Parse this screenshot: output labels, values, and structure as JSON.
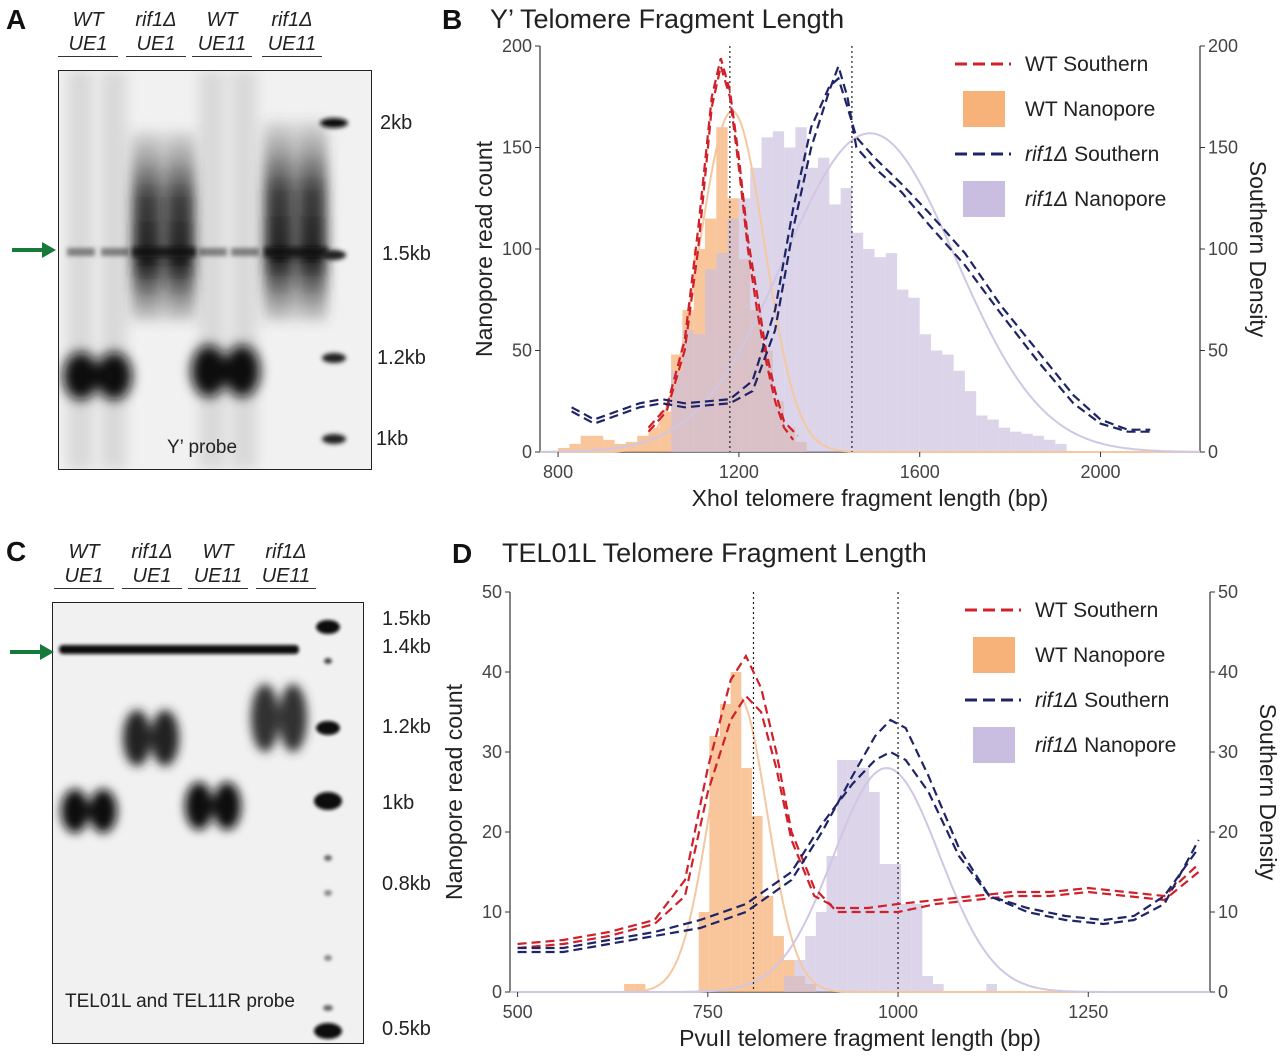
{
  "panels": {
    "A": {
      "letter": "A",
      "lanes": [
        {
          "top": "WT",
          "bottom": "UE1"
        },
        {
          "top": "rif1Δ",
          "bottom": "UE1"
        },
        {
          "top": "WT",
          "bottom": "UE11"
        },
        {
          "top": "rif1Δ",
          "bottom": "UE11"
        }
      ],
      "markers": [
        "2kb",
        "1.5kb",
        "1.2kb",
        "1kb"
      ],
      "caption": "Y’ probe"
    },
    "B": {
      "letter": "B",
      "title": "Y’ Telomere Fragment Length",
      "xlabel": "XhoI telomere fragment length (bp)",
      "ylabel_left": "Nanopore read count",
      "ylabel_right": "Southern Density"
    },
    "C": {
      "letter": "C",
      "lanes": [
        {
          "top": "WT",
          "bottom": "UE1"
        },
        {
          "top": "rif1Δ",
          "bottom": "UE1"
        },
        {
          "top": "WT",
          "bottom": "UE11"
        },
        {
          "top": "rif1Δ",
          "bottom": "UE11"
        }
      ],
      "markers": [
        "1.5kb",
        "1.4kb",
        "1.2kb",
        "1kb",
        "0.8kb",
        "0.5kb"
      ],
      "caption": "TEL01L and TEL11R probe"
    },
    "D": {
      "letter": "D",
      "title": "TEL01L Telomere Fragment Length",
      "xlabel": "PvuII telomere fragment length (bp)",
      "ylabel_left": "Nanopore read count",
      "ylabel_right": "Southern Density"
    }
  },
  "colors": {
    "wt_southern": "#d0202a",
    "wt_nanopore": "#f7b27a",
    "rif1_southern": "#1f2466",
    "rif1_nanopore": "#c9bedf",
    "arrow": "#167a3a"
  },
  "chart_data": [
    {
      "type": "histogram+line",
      "title": "Y’ Telomere Fragment Length",
      "xlabel": "XhoI telomere fragment length (bp)",
      "ylabel": "Nanopore read count",
      "ylabel_right": "Southern Density",
      "xlim": [
        760,
        2220
      ],
      "ylim": [
        0,
        200
      ],
      "xticks": [
        800,
        1200,
        1600,
        2000
      ],
      "yticks": [
        0,
        50,
        100,
        150,
        200
      ],
      "yticks_right": [
        0,
        50,
        100,
        150,
        200
      ],
      "legend_position": "top-right",
      "legend": [
        "WT Southern",
        "WT Nanopore",
        "rif1Δ Southern",
        "rif1Δ Nanopore"
      ],
      "vlines": [
        1180,
        1450
      ],
      "wt_nanopore_bins": {
        "start": 800,
        "width": 25,
        "counts": [
          2,
          4,
          8,
          8,
          6,
          4,
          5,
          8,
          12,
          20,
          48,
          70,
          100,
          115,
          160,
          125,
          95,
          70,
          50,
          25,
          12,
          5
        ]
      },
      "rif1_nanopore_bins": {
        "start": 1050,
        "width": 25,
        "counts": [
          40,
          60,
          58,
          90,
          98,
          115,
          125,
          140,
          155,
          158,
          150,
          160,
          140,
          145,
          122,
          130,
          108,
          100,
          96,
          98,
          80,
          76,
          58,
          50,
          48,
          40,
          30,
          18,
          16,
          12,
          10,
          9,
          8,
          6,
          4
        ]
      },
      "wt_southern": [
        {
          "name": "WT Southern",
          "points": [
            [
              1000,
              10
            ],
            [
              1040,
              20
            ],
            [
              1080,
              50
            ],
            [
              1110,
              100
            ],
            [
              1140,
              170
            ],
            [
              1160,
              190
            ],
            [
              1180,
              175
            ],
            [
              1200,
              140
            ],
            [
              1220,
              100
            ],
            [
              1240,
              70
            ],
            [
              1260,
              45
            ],
            [
              1280,
              25
            ],
            [
              1300,
              12
            ],
            [
              1320,
              6
            ]
          ]
        },
        {
          "name": "WT Southern",
          "points": [
            [
              1000,
              12
            ],
            [
              1040,
              22
            ],
            [
              1080,
              55
            ],
            [
              1110,
              110
            ],
            [
              1140,
              175
            ],
            [
              1160,
              194
            ],
            [
              1180,
              178
            ],
            [
              1200,
              145
            ],
            [
              1220,
              105
            ],
            [
              1240,
              78
            ],
            [
              1260,
              50
            ],
            [
              1280,
              30
            ],
            [
              1300,
              15
            ],
            [
              1330,
              8
            ]
          ]
        }
      ],
      "rif1_southern": [
        {
          "name": "rif1Δ Southern",
          "points": [
            [
              830,
              20
            ],
            [
              880,
              14
            ],
            [
              930,
              18
            ],
            [
              980,
              22
            ],
            [
              1030,
              24
            ],
            [
              1080,
              22
            ],
            [
              1130,
              23
            ],
            [
              1180,
              24
            ],
            [
              1230,
              30
            ],
            [
              1280,
              60
            ],
            [
              1320,
              110
            ],
            [
              1360,
              150
            ],
            [
              1400,
              178
            ],
            [
              1420,
              190
            ],
            [
              1440,
              175
            ],
            [
              1460,
              150
            ],
            [
              1500,
              140
            ],
            [
              1560,
              128
            ],
            [
              1620,
              112
            ],
            [
              1700,
              92
            ],
            [
              1780,
              68
            ],
            [
              1860,
              45
            ],
            [
              1940,
              24
            ],
            [
              2000,
              14
            ],
            [
              2060,
              10
            ],
            [
              2110,
              10
            ]
          ]
        },
        {
          "name": "rif1Δ Southern",
          "points": [
            [
              830,
              22
            ],
            [
              880,
              16
            ],
            [
              930,
              20
            ],
            [
              980,
              24
            ],
            [
              1030,
              26
            ],
            [
              1080,
              24
            ],
            [
              1130,
              25
            ],
            [
              1180,
              26
            ],
            [
              1230,
              35
            ],
            [
              1280,
              70
            ],
            [
              1320,
              120
            ],
            [
              1360,
              160
            ],
            [
              1400,
              180
            ],
            [
              1420,
              184
            ],
            [
              1440,
              170
            ],
            [
              1460,
              155
            ],
            [
              1500,
              145
            ],
            [
              1560,
              132
            ],
            [
              1620,
              118
            ],
            [
              1700,
              98
            ],
            [
              1780,
              72
            ],
            [
              1860,
              50
            ],
            [
              1940,
              28
            ],
            [
              2000,
              16
            ],
            [
              2060,
              11
            ],
            [
              2110,
              11
            ]
          ]
        }
      ],
      "wt_fit": {
        "mean": 1185,
        "sd": 72,
        "peak": 168
      },
      "rif1_fit": {
        "mean": 1490,
        "sd": 190,
        "peak": 157
      }
    },
    {
      "type": "histogram+line",
      "title": "TEL01L Telomere Fragment Length",
      "xlabel": "PvuII telomere fragment length (bp)",
      "ylabel": "Nanopore read count",
      "ylabel_right": "Southern Density",
      "xlim": [
        490,
        1410
      ],
      "ylim": [
        0,
        50
      ],
      "xticks": [
        500,
        750,
        1000,
        1250
      ],
      "yticks": [
        0,
        10,
        20,
        30,
        40,
        50
      ],
      "yticks_right": [
        0,
        10,
        20,
        30,
        40,
        50
      ],
      "legend_position": "top-right",
      "legend": [
        "WT Southern",
        "WT Nanopore",
        "rif1Δ Southern",
        "rif1Δ Nanopore"
      ],
      "vlines": [
        810,
        1000
      ],
      "wt_nanopore_bins": {
        "start": 640,
        "width": 14,
        "counts": [
          1,
          1,
          0,
          0,
          0,
          0,
          0,
          10,
          32,
          36,
          40,
          28,
          22,
          12,
          7,
          4,
          2,
          1
        ]
      },
      "rif1_nanopore_bins": {
        "start": 850,
        "width": 14,
        "counts": [
          2,
          4,
          7,
          10,
          17,
          29,
          29,
          28,
          25,
          16,
          16,
          11,
          11,
          2,
          1,
          0,
          0,
          0,
          0,
          1
        ]
      },
      "wt_southern": [
        {
          "name": "WT Southern",
          "points": [
            [
              500,
              6
            ],
            [
              560,
              6.5
            ],
            [
              620,
              7.5
            ],
            [
              680,
              9
            ],
            [
              720,
              14
            ],
            [
              750,
              28
            ],
            [
              780,
              39
            ],
            [
              800,
              42
            ],
            [
              820,
              38
            ],
            [
              840,
              30
            ],
            [
              860,
              20
            ],
            [
              890,
              13
            ],
            [
              920,
              10
            ],
            [
              960,
              10
            ],
            [
              1000,
              10
            ],
            [
              1050,
              11
            ],
            [
              1100,
              11.5
            ],
            [
              1150,
              12
            ],
            [
              1200,
              12
            ],
            [
              1250,
              12.5
            ],
            [
              1300,
              12
            ],
            [
              1350,
              11.5
            ],
            [
              1395,
              15
            ]
          ]
        },
        {
          "name": "WT Southern",
          "points": [
            [
              500,
              5.5
            ],
            [
              560,
              6
            ],
            [
              620,
              7
            ],
            [
              680,
              8.5
            ],
            [
              720,
              12
            ],
            [
              750,
              25
            ],
            [
              780,
              34
            ],
            [
              800,
              37
            ],
            [
              820,
              35
            ],
            [
              840,
              28
            ],
            [
              860,
              19
            ],
            [
              890,
              12
            ],
            [
              920,
              10.5
            ],
            [
              960,
              10.5
            ],
            [
              1000,
              11
            ],
            [
              1050,
              11.5
            ],
            [
              1100,
              12
            ],
            [
              1150,
              12.5
            ],
            [
              1200,
              12.5
            ],
            [
              1250,
              13
            ],
            [
              1300,
              12.5
            ],
            [
              1350,
              12
            ],
            [
              1395,
              16
            ]
          ]
        }
      ],
      "rif1_southern": [
        {
          "name": "rif1Δ Southern",
          "points": [
            [
              500,
              5
            ],
            [
              560,
              5
            ],
            [
              620,
              6
            ],
            [
              680,
              7
            ],
            [
              740,
              8
            ],
            [
              800,
              10
            ],
            [
              860,
              14
            ],
            [
              900,
              20
            ],
            [
              940,
              27
            ],
            [
              970,
              32
            ],
            [
              990,
              34
            ],
            [
              1010,
              33
            ],
            [
              1040,
              27
            ],
            [
              1080,
              18
            ],
            [
              1120,
              12
            ],
            [
              1170,
              10
            ],
            [
              1220,
              9
            ],
            [
              1270,
              8.5
            ],
            [
              1310,
              9
            ],
            [
              1350,
              11
            ],
            [
              1395,
              19
            ]
          ]
        },
        {
          "name": "rif1Δ Southern",
          "points": [
            [
              500,
              5.5
            ],
            [
              560,
              5.5
            ],
            [
              620,
              6.5
            ],
            [
              680,
              7.5
            ],
            [
              740,
              9
            ],
            [
              800,
              11
            ],
            [
              860,
              15
            ],
            [
              900,
              21
            ],
            [
              940,
              26
            ],
            [
              970,
              29
            ],
            [
              990,
              30
            ],
            [
              1010,
              29
            ],
            [
              1040,
              25
            ],
            [
              1080,
              17
            ],
            [
              1120,
              12
            ],
            [
              1170,
              10.5
            ],
            [
              1220,
              9.5
            ],
            [
              1270,
              9
            ],
            [
              1310,
              9.5
            ],
            [
              1350,
              12
            ],
            [
              1395,
              18
            ]
          ]
        }
      ],
      "wt_fit": {
        "mean": 790,
        "sd": 38,
        "peak": 37
      },
      "rif1_fit": {
        "mean": 985,
        "sd": 70,
        "peak": 28
      }
    }
  ]
}
